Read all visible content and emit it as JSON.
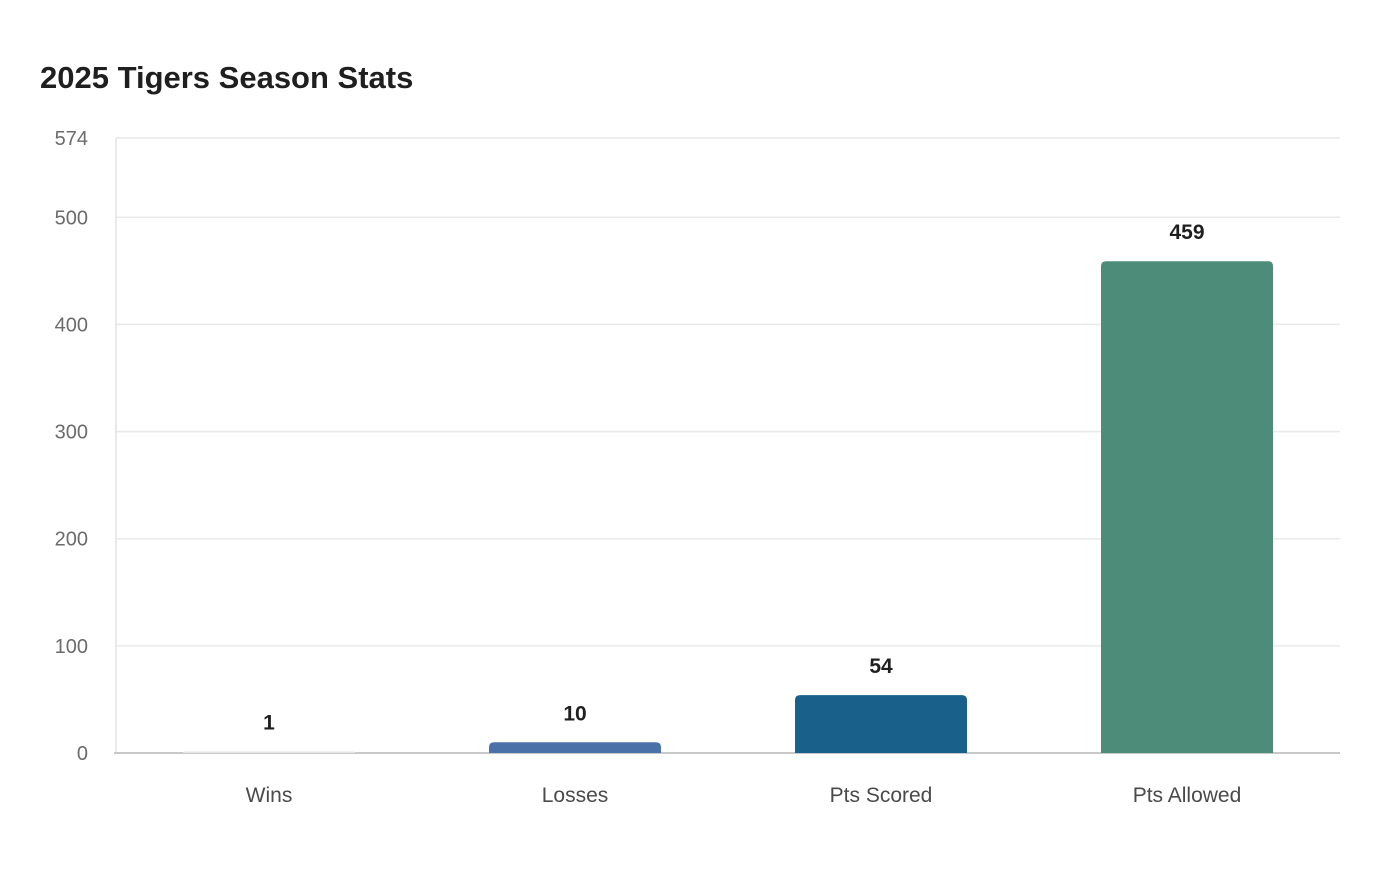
{
  "chart_data": {
    "type": "bar",
    "title": "2025 Tigers Season Stats",
    "xlabel": "",
    "ylabel": "",
    "categories": [
      "Wins",
      "Losses",
      "Pts Scored",
      "Pts Allowed"
    ],
    "values": [
      1,
      10,
      54,
      459
    ],
    "value_labels": [
      "1",
      "10",
      "54",
      "459"
    ],
    "colors": [
      "#e6e6e6",
      "#4a72a8",
      "#19608a",
      "#4e8c7a"
    ],
    "ylim": [
      0,
      574
    ],
    "yticks": [
      0,
      100,
      200,
      300,
      400,
      500,
      574
    ],
    "grid": true,
    "legend": "none"
  }
}
